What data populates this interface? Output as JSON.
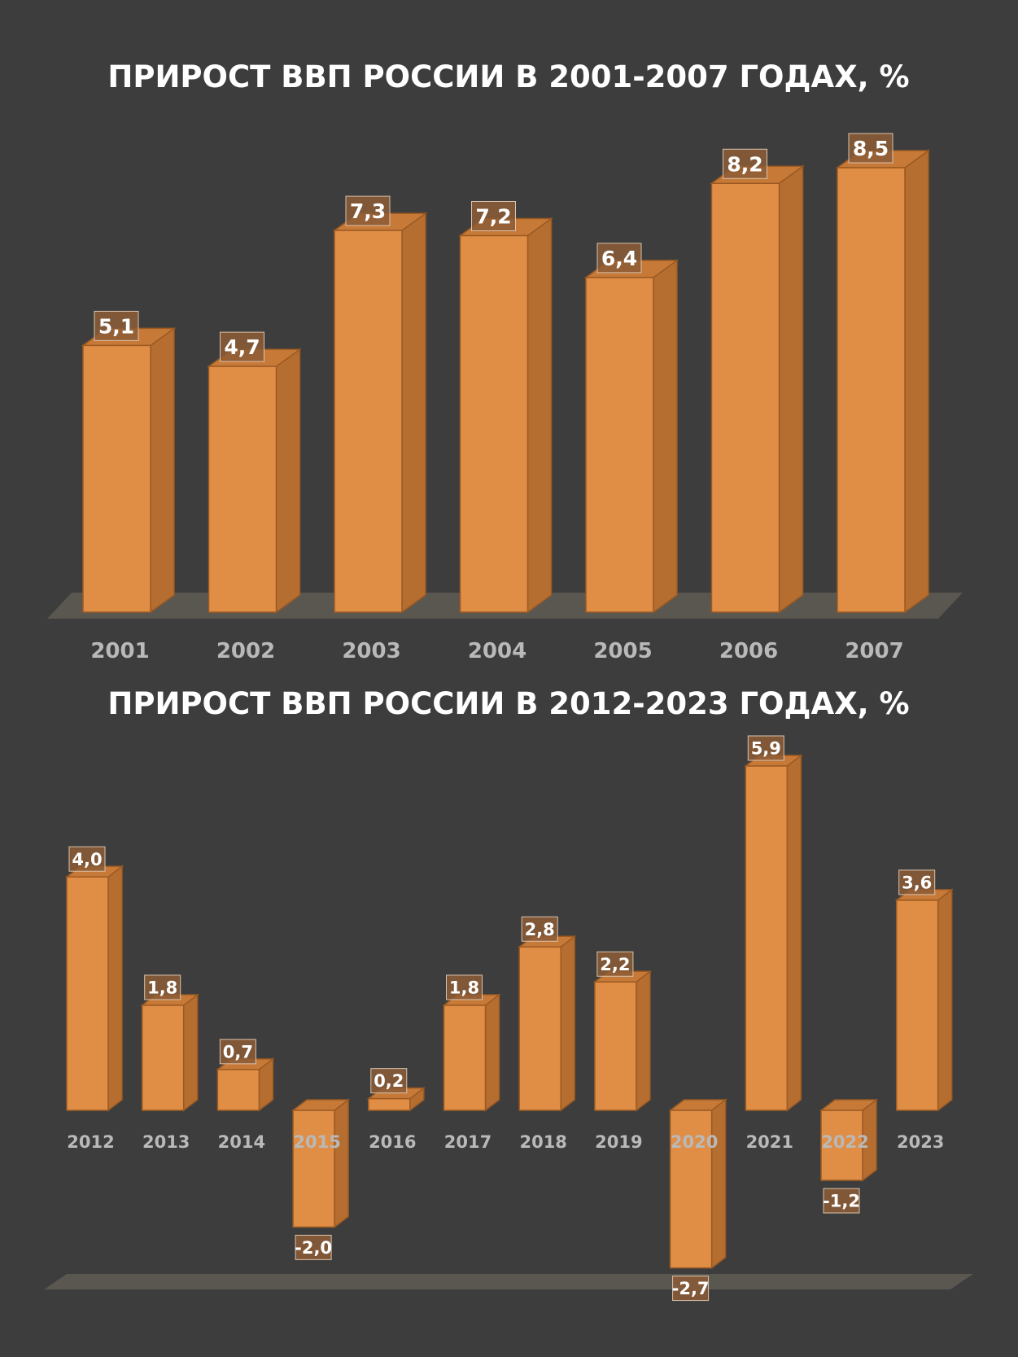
{
  "colors": {
    "background": "#3d3d3d",
    "bar_front": "#e08e46",
    "bar_side": "#b56d30",
    "bar_top": "#c77a38",
    "bar_edge": "#9b5a22",
    "label_box": "#8c5c36",
    "label_border": "#d9c3ad",
    "floor": "#5a5650",
    "year_text": "#b9b9b9"
  },
  "chart_data": [
    {
      "type": "bar",
      "title": "ПРИРОСТ ВВП РОССИИ В 2001-2007 ГОДАХ, %",
      "categories": [
        "2001",
        "2002",
        "2003",
        "2004",
        "2005",
        "2006",
        "2007"
      ],
      "values": [
        5.1,
        4.7,
        7.3,
        7.2,
        6.4,
        8.2,
        8.5
      ],
      "value_labels": [
        "5,1",
        "4,7",
        "7,3",
        "7,2",
        "6,4",
        "8,2",
        "8,5"
      ],
      "ylim": [
        0,
        8.5
      ],
      "grid": false,
      "style": "3d-column"
    },
    {
      "type": "bar",
      "title": "ПРИРОСТ ВВП РОССИИ В 2012-2023 ГОДАХ, %",
      "categories": [
        "2012",
        "2013",
        "2014",
        "2015",
        "2016",
        "2017",
        "2018",
        "2019",
        "2020",
        "2021",
        "2022",
        "2023"
      ],
      "values": [
        4.0,
        1.8,
        0.7,
        -2.0,
        0.2,
        1.8,
        2.8,
        2.2,
        -2.7,
        5.9,
        -1.2,
        3.6
      ],
      "value_labels": [
        "4,0",
        "1,8",
        "0,7",
        "-2,0",
        "0,2",
        "1,8",
        "2,8",
        "2,2",
        "-2,7",
        "5,9",
        "-1,2",
        "3,6"
      ],
      "ylim": [
        -2.7,
        5.9
      ],
      "grid": false,
      "style": "3d-column"
    }
  ]
}
